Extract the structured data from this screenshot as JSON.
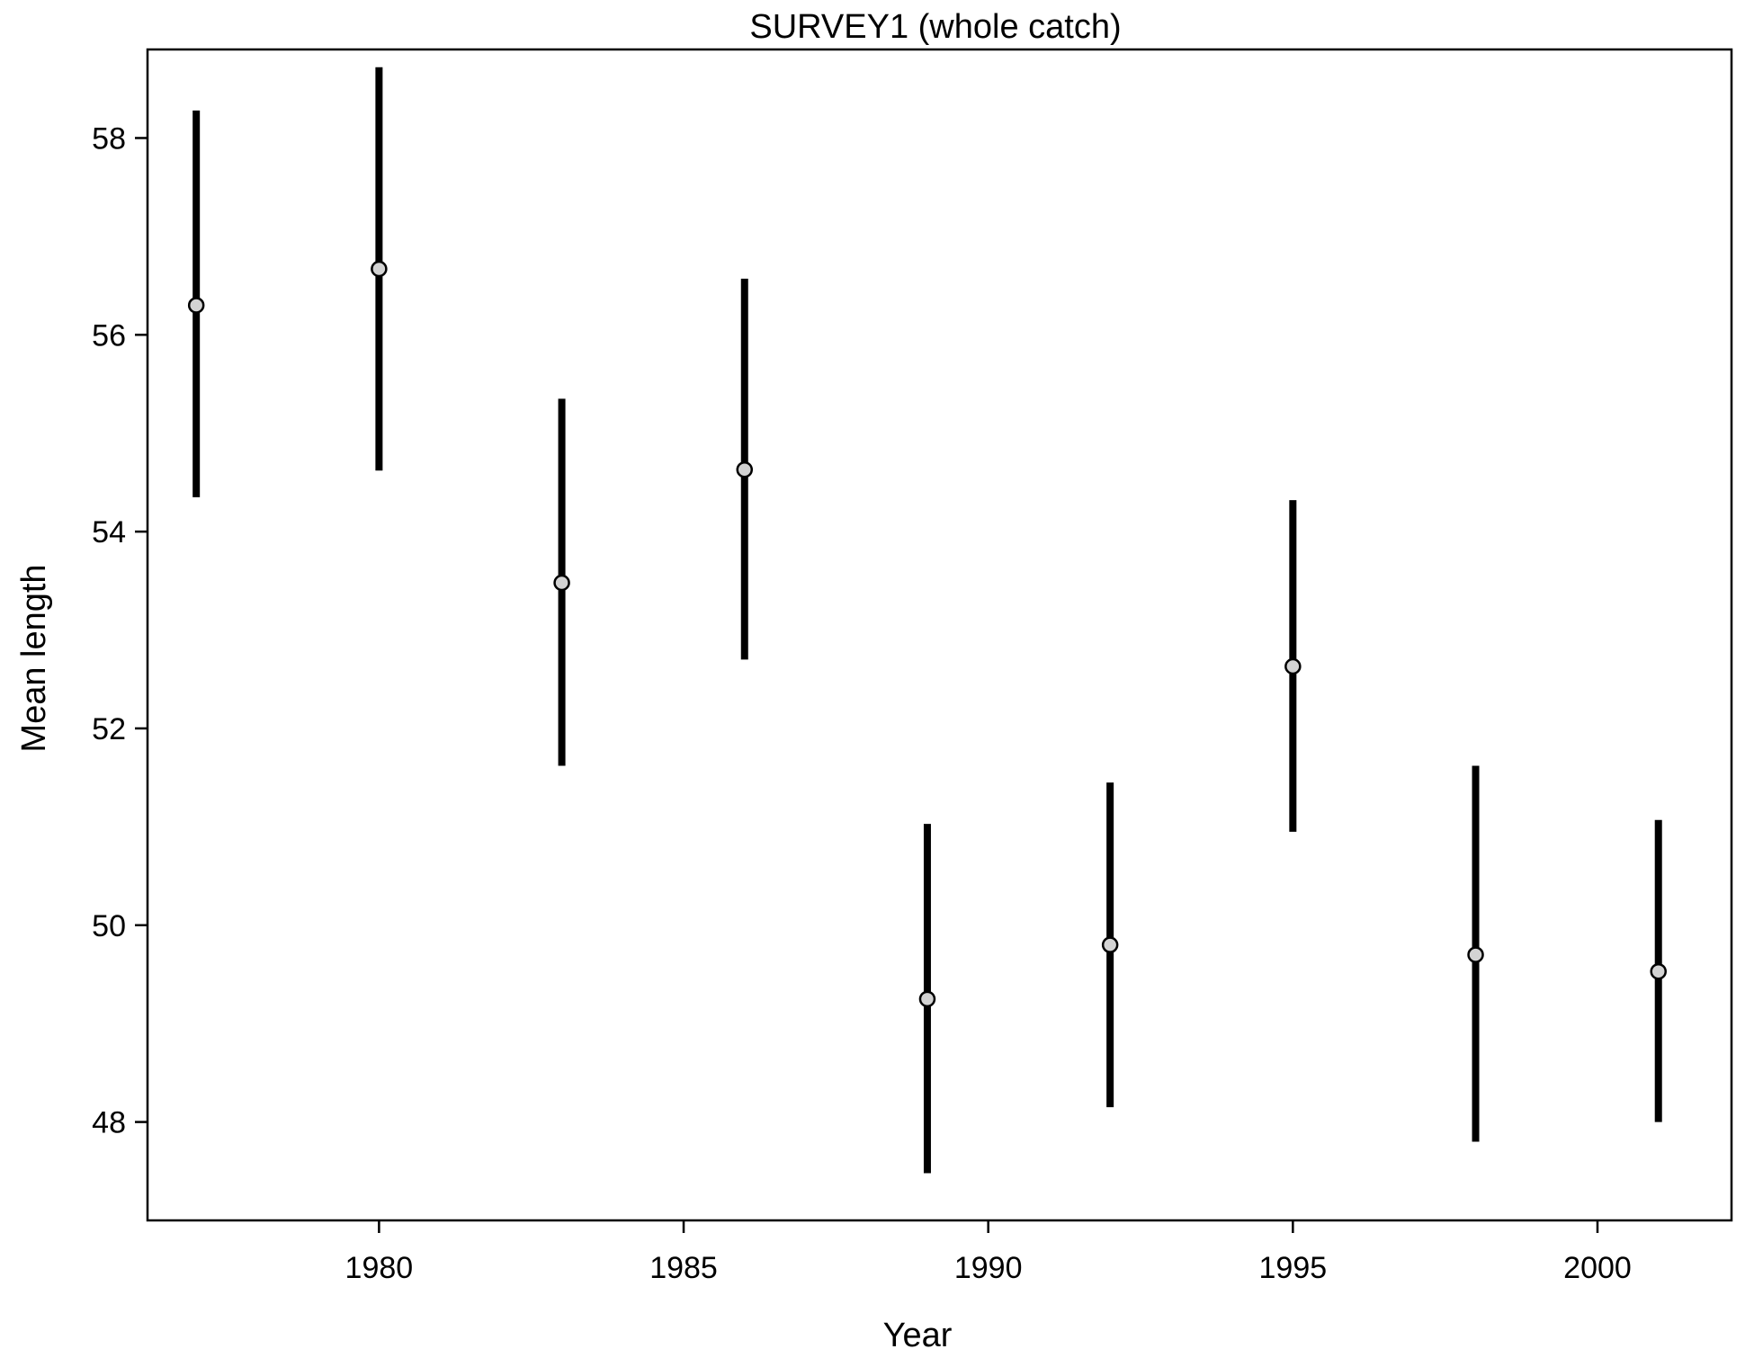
{
  "chart_data": {
    "type": "scatter",
    "title": "SURVEY1 (whole catch)",
    "xlabel": "Year",
    "ylabel": "Mean length",
    "xlim": [
      1976.2,
      2002.2
    ],
    "ylim": [
      47.0,
      58.9
    ],
    "xticks": [
      1980,
      1985,
      1990,
      1995,
      2000
    ],
    "yticks": [
      48,
      50,
      52,
      54,
      56,
      58
    ],
    "grid": false,
    "point_color": "#d3d3d3",
    "bar_color": "#000000",
    "points": [
      {
        "x": 1977,
        "y": 56.3,
        "lower": 54.35,
        "upper": 58.28
      },
      {
        "x": 1980,
        "y": 56.67,
        "lower": 54.62,
        "upper": 58.72
      },
      {
        "x": 1983,
        "y": 53.48,
        "lower": 51.62,
        "upper": 55.35
      },
      {
        "x": 1986,
        "y": 54.63,
        "lower": 52.7,
        "upper": 56.57
      },
      {
        "x": 1989,
        "y": 49.25,
        "lower": 47.48,
        "upper": 51.03
      },
      {
        "x": 1992,
        "y": 49.8,
        "lower": 48.15,
        "upper": 51.45
      },
      {
        "x": 1995,
        "y": 52.63,
        "lower": 50.95,
        "upper": 54.32
      },
      {
        "x": 1998,
        "y": 49.7,
        "lower": 47.8,
        "upper": 51.62
      },
      {
        "x": 2001,
        "y": 49.53,
        "lower": 48.0,
        "upper": 51.07
      }
    ]
  }
}
